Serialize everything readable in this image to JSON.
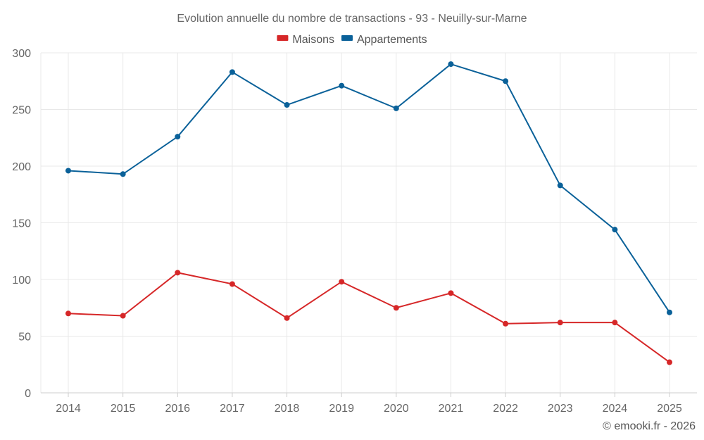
{
  "chart_data": {
    "type": "line",
    "title": "Evolution annuelle du nombre de transactions - 93 - Neuilly-sur-Marne",
    "categories": [
      "2014",
      "2015",
      "2016",
      "2017",
      "2018",
      "2019",
      "2020",
      "2021",
      "2022",
      "2023",
      "2024",
      "2025"
    ],
    "series": [
      {
        "name": "Maisons",
        "color": "#d62728",
        "values": [
          70,
          68,
          106,
          96,
          66,
          98,
          75,
          88,
          61,
          62,
          62,
          27
        ]
      },
      {
        "name": "Appartements",
        "color": "#0a6199",
        "values": [
          196,
          193,
          226,
          283,
          254,
          271,
          251,
          290,
          275,
          183,
          144,
          71
        ]
      }
    ],
    "ylim": [
      0,
      300
    ],
    "yticks": [
      0,
      50,
      100,
      150,
      200,
      250,
      300
    ],
    "xlabel": "",
    "ylabel": "",
    "grid": true,
    "legend_position": "top-center"
  },
  "credit": "© emooki.fr - 2026"
}
